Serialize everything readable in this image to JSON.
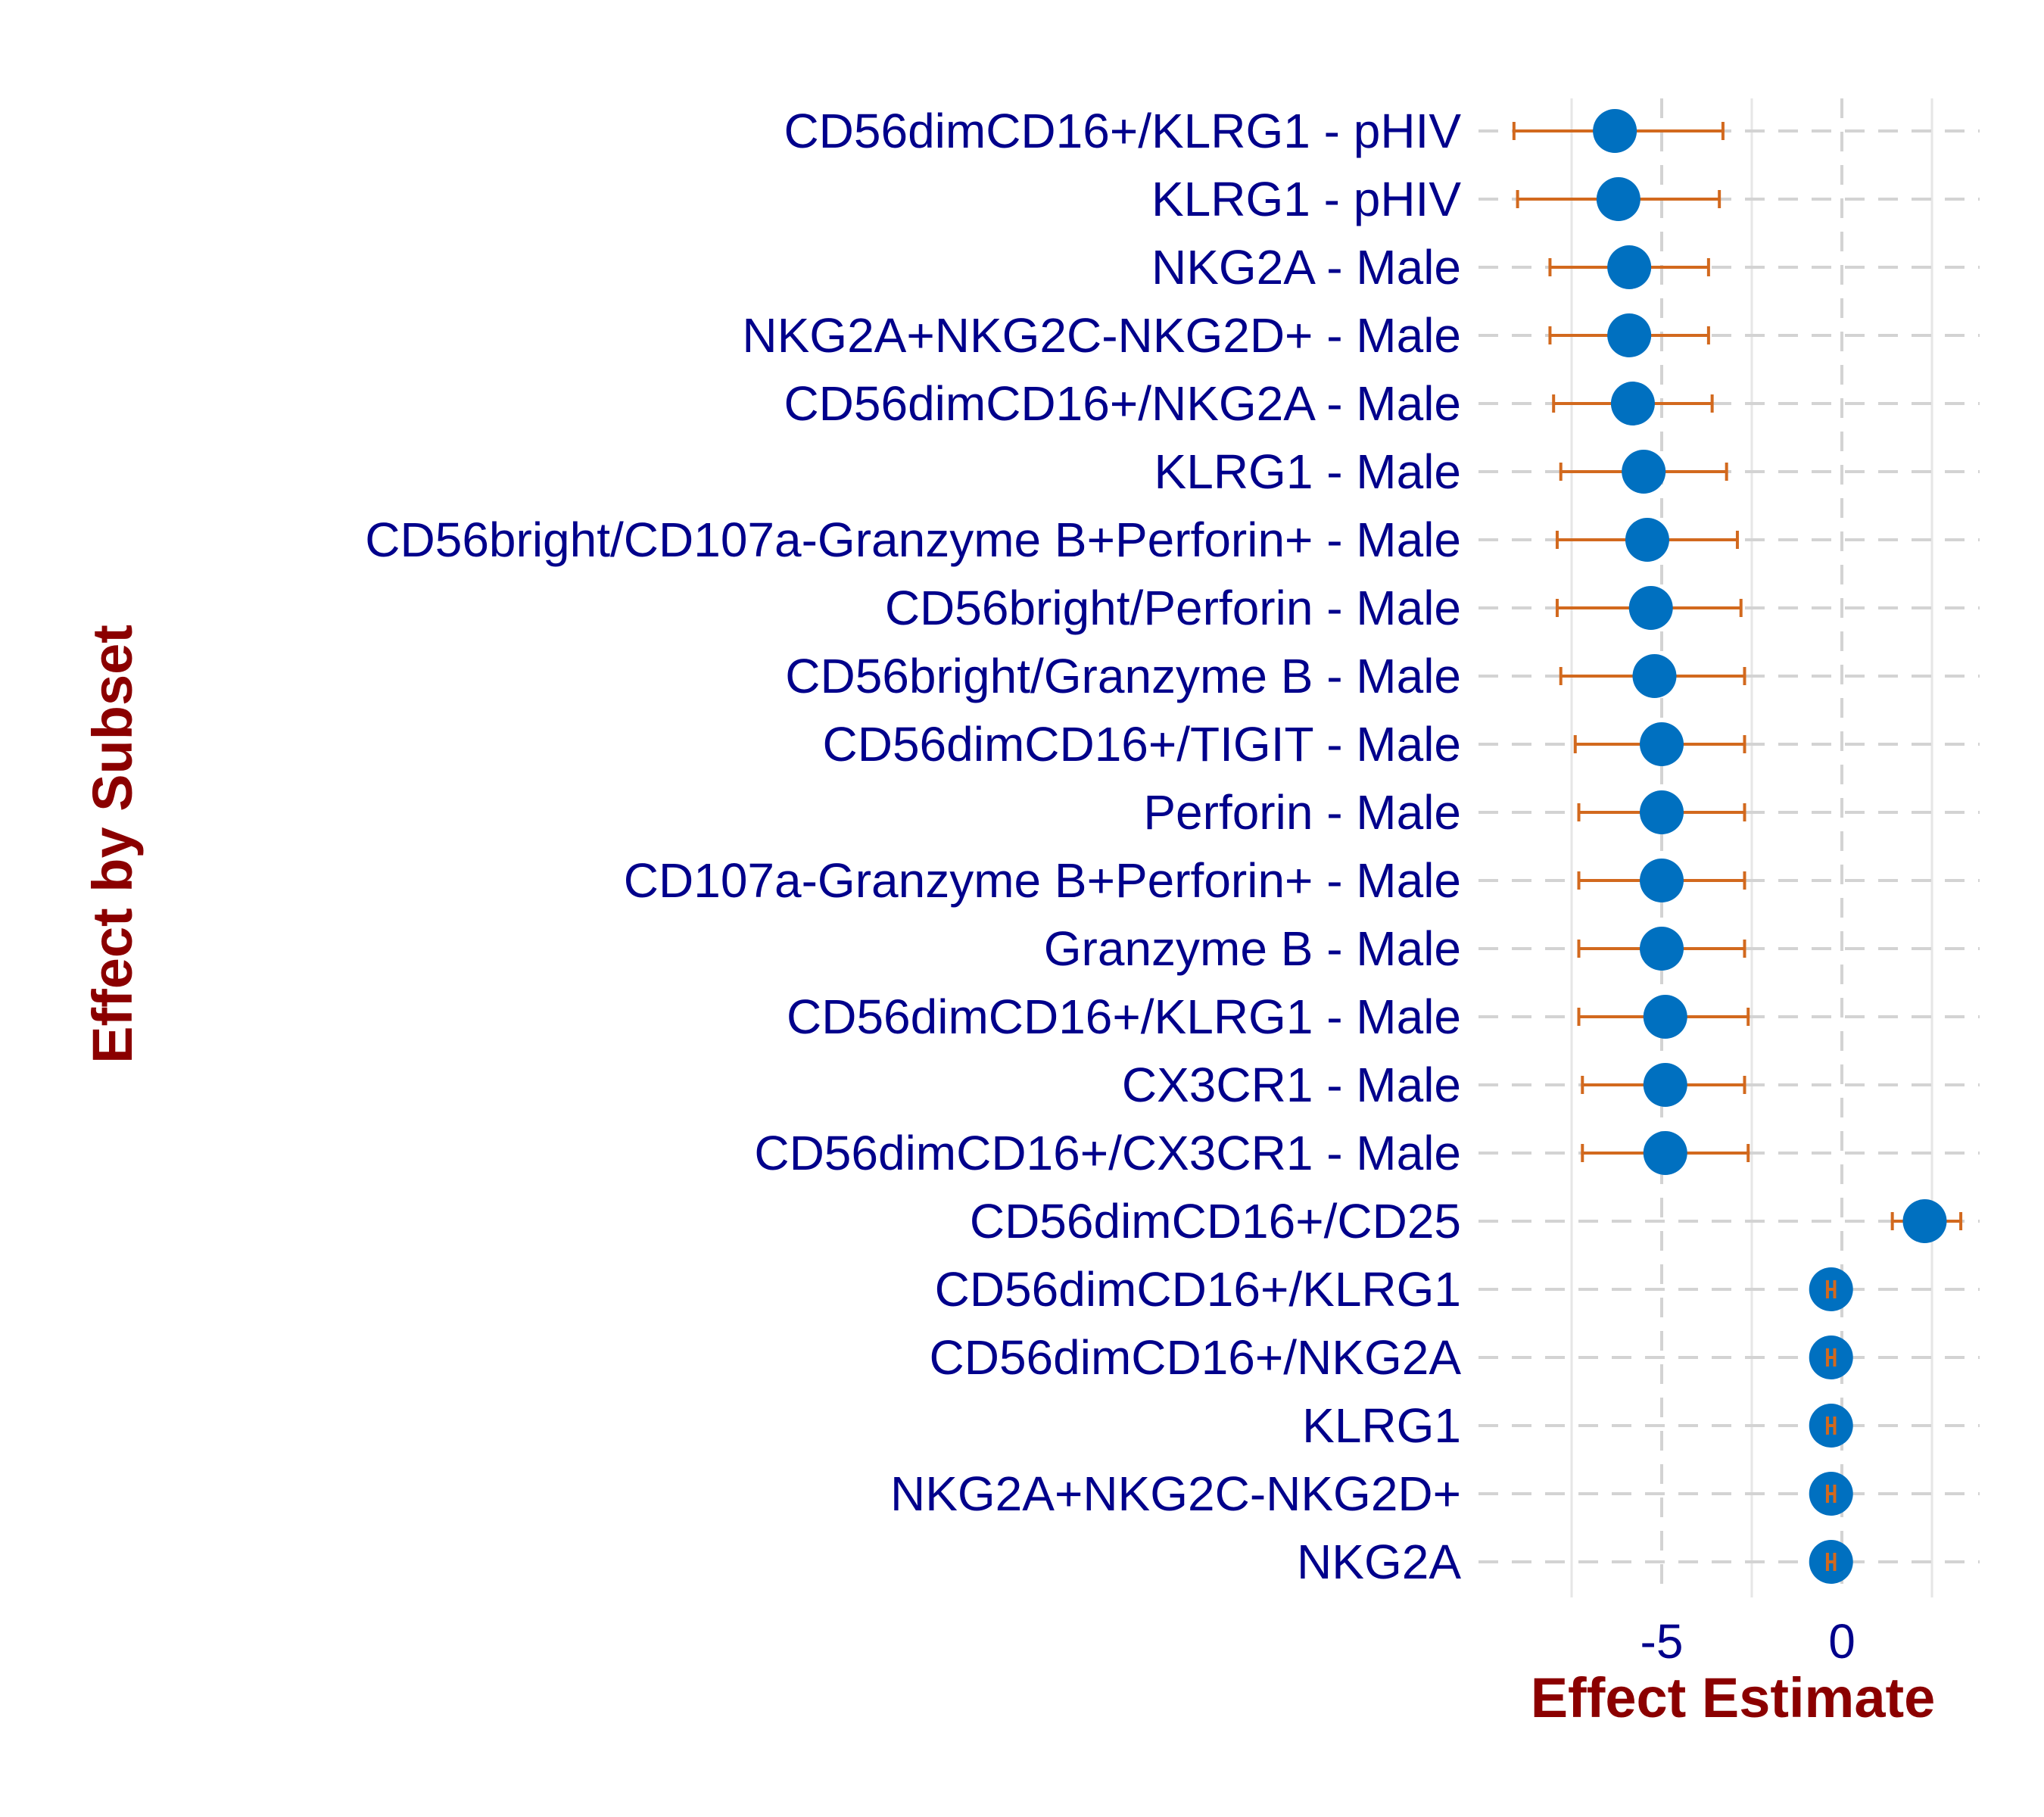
{
  "chart_data": {
    "type": "forest",
    "xlabel": "Effect Estimate",
    "ylabel": "Effect by Subset",
    "xlim": [
      -9.8,
      3.9
    ],
    "xticks": [
      -5,
      0
    ],
    "xtick_labels": [
      "-5",
      "0"
    ],
    "grid": true,
    "colors": {
      "point": "#0070C0",
      "errorbar": "#D2691E",
      "text": "#00008B",
      "axis_title": "#8B0000",
      "grid": "#D3D3D3"
    },
    "rows": [
      {
        "label": "CD56dimCD16+/KLRG1 - pHIV",
        "estimate": -6.3,
        "lower": -9.1,
        "upper": -3.3
      },
      {
        "label": "KLRG1 - pHIV",
        "estimate": -6.2,
        "lower": -9.0,
        "upper": -3.4
      },
      {
        "label": "NKG2A - Male",
        "estimate": -5.9,
        "lower": -8.1,
        "upper": -3.7
      },
      {
        "label": "NKG2A+NKG2C-NKG2D+ - Male",
        "estimate": -5.9,
        "lower": -8.1,
        "upper": -3.7
      },
      {
        "label": "CD56dimCD16+/NKG2A - Male",
        "estimate": -5.8,
        "lower": -8.0,
        "upper": -3.6
      },
      {
        "label": "KLRG1 - Male",
        "estimate": -5.5,
        "lower": -7.8,
        "upper": -3.2
      },
      {
        "label": "CD56bright/CD107a-Granzyme B+Perforin+ - Male",
        "estimate": -5.4,
        "lower": -7.9,
        "upper": -2.9
      },
      {
        "label": "CD56bright/Perforin - Male",
        "estimate": -5.3,
        "lower": -7.9,
        "upper": -2.8
      },
      {
        "label": "CD56bright/Granzyme B - Male",
        "estimate": -5.2,
        "lower": -7.8,
        "upper": -2.7
      },
      {
        "label": "CD56dimCD16+/TIGIT - Male",
        "estimate": -5.0,
        "lower": -7.4,
        "upper": -2.7
      },
      {
        "label": "Perforin - Male",
        "estimate": -5.0,
        "lower": -7.3,
        "upper": -2.7
      },
      {
        "label": "CD107a-Granzyme B+Perforin+ - Male",
        "estimate": -5.0,
        "lower": -7.3,
        "upper": -2.7
      },
      {
        "label": "Granzyme B - Male",
        "estimate": -5.0,
        "lower": -7.3,
        "upper": -2.7
      },
      {
        "label": "CD56dimCD16+/KLRG1 - Male",
        "estimate": -4.9,
        "lower": -7.3,
        "upper": -2.6
      },
      {
        "label": "CX3CR1 - Male",
        "estimate": -4.9,
        "lower": -7.2,
        "upper": -2.7
      },
      {
        "label": "CD56dimCD16+/CX3CR1 - Male",
        "estimate": -4.9,
        "lower": -7.2,
        "upper": -2.6
      },
      {
        "label": "CD56dimCD16+/CD25",
        "estimate": 2.3,
        "lower": 1.4,
        "upper": 3.3
      },
      {
        "label": "CD56dimCD16+/KLRG1",
        "estimate": -0.3,
        "lower": -0.4,
        "upper": -0.2
      },
      {
        "label": "CD56dimCD16+/NKG2A",
        "estimate": -0.3,
        "lower": -0.4,
        "upper": -0.2
      },
      {
        "label": "KLRG1",
        "estimate": -0.3,
        "lower": -0.4,
        "upper": -0.2
      },
      {
        "label": "NKG2A+NKG2C-NKG2D+",
        "estimate": -0.3,
        "lower": -0.4,
        "upper": -0.2
      },
      {
        "label": "NKG2A",
        "estimate": -0.3,
        "lower": -0.4,
        "upper": -0.2
      }
    ]
  }
}
